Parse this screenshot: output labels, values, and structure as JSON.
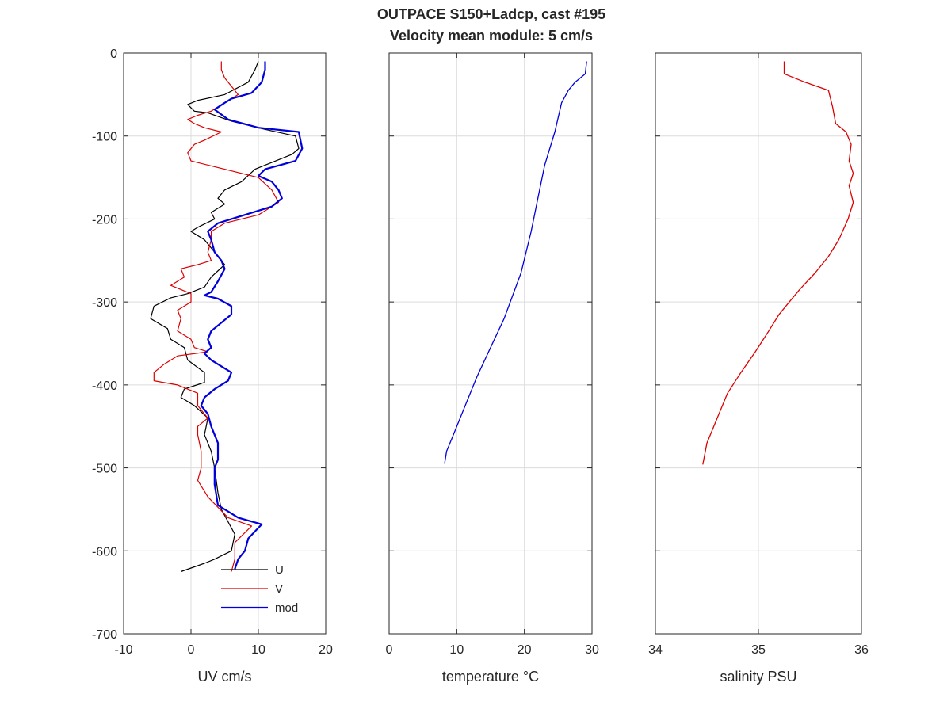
{
  "title": {
    "line1": "OUTPACE S150+Ladcp, cast #195",
    "line2": "Velocity mean module:  5 cm/s"
  },
  "chart_data": [
    {
      "type": "line",
      "xlabel": "UV cm/s",
      "ylabel": "",
      "xlim": [
        -10,
        20
      ],
      "ylim": [
        -700,
        0
      ],
      "xticks": [
        -10,
        0,
        10,
        20
      ],
      "yticks": [
        0,
        -100,
        -200,
        -300,
        -400,
        -500,
        -600,
        -700
      ],
      "grid": true,
      "legend": {
        "placement": "bottom-right",
        "entries": [
          "U",
          "V",
          "mod"
        ]
      },
      "series": [
        {
          "name": "U",
          "color": "#000000",
          "points": [
            [
              10,
              -10
            ],
            [
              9.5,
              -20
            ],
            [
              8.5,
              -35
            ],
            [
              5,
              -50
            ],
            [
              1,
              -57
            ],
            [
              -0.5,
              -62
            ],
            [
              0.5,
              -70
            ],
            [
              2.5,
              -72
            ],
            [
              6,
              -82
            ],
            [
              11,
              -92
            ],
            [
              15.5,
              -100
            ],
            [
              16,
              -115
            ],
            [
              15,
              -122
            ],
            [
              11,
              -135
            ],
            [
              9.5,
              -140
            ],
            [
              7.5,
              -155
            ],
            [
              5,
              -165
            ],
            [
              4,
              -175
            ],
            [
              5,
              -182
            ],
            [
              3,
              -192
            ],
            [
              3.5,
              -200
            ],
            [
              1,
              -210
            ],
            [
              0,
              -215
            ],
            [
              2,
              -225
            ],
            [
              3.5,
              -240
            ],
            [
              5,
              -255
            ],
            [
              3,
              -270
            ],
            [
              2,
              -282
            ],
            [
              -0.5,
              -290
            ],
            [
              -3,
              -295
            ],
            [
              -5.5,
              -305
            ],
            [
              -6,
              -320
            ],
            [
              -3.5,
              -332
            ],
            [
              -3,
              -345
            ],
            [
              -1,
              -355
            ],
            [
              -0.5,
              -370
            ],
            [
              2,
              -385
            ],
            [
              2,
              -397
            ],
            [
              -1,
              -405
            ],
            [
              -1.5,
              -415
            ],
            [
              0.5,
              -425
            ],
            [
              2.5,
              -440
            ],
            [
              2,
              -460
            ],
            [
              3,
              -480
            ],
            [
              3.5,
              -500
            ],
            [
              4,
              -530
            ],
            [
              4.5,
              -550
            ],
            [
              6.5,
              -580
            ],
            [
              6,
              -600
            ],
            [
              3.5,
              -610
            ],
            [
              2,
              -615
            ],
            [
              -1.5,
              -625
            ]
          ]
        },
        {
          "name": "V",
          "color": "#dd0000",
          "points": [
            [
              4.5,
              -10
            ],
            [
              4.5,
              -20
            ],
            [
              5,
              -30
            ],
            [
              6,
              -40
            ],
            [
              7,
              -50
            ],
            [
              5,
              -60
            ],
            [
              3,
              -70
            ],
            [
              1,
              -75
            ],
            [
              -0.5,
              -80
            ],
            [
              0.5,
              -85
            ],
            [
              2,
              -90
            ],
            [
              4.5,
              -95
            ],
            [
              2,
              -105
            ],
            [
              0.5,
              -110
            ],
            [
              -0.5,
              -120
            ],
            [
              0,
              -130
            ],
            [
              5,
              -140
            ],
            [
              10,
              -150
            ],
            [
              12,
              -165
            ],
            [
              13,
              -180
            ],
            [
              10,
              -195
            ],
            [
              5,
              -205
            ],
            [
              3,
              -215
            ],
            [
              3,
              -225
            ],
            [
              2.5,
              -240
            ],
            [
              3,
              -250
            ],
            [
              1,
              -255
            ],
            [
              -1.5,
              -260
            ],
            [
              -1,
              -270
            ],
            [
              -2,
              -275
            ],
            [
              -3,
              -280
            ],
            [
              -1.5,
              -285
            ],
            [
              0,
              -290
            ],
            [
              0,
              -300
            ],
            [
              -2,
              -310
            ],
            [
              -1.5,
              -320
            ],
            [
              -2,
              -335
            ],
            [
              0,
              -345
            ],
            [
              0.5,
              -355
            ],
            [
              2.5,
              -360
            ],
            [
              -2,
              -365
            ],
            [
              -4,
              -375
            ],
            [
              -5.5,
              -385
            ],
            [
              -5.5,
              -395
            ],
            [
              -2,
              -400
            ],
            [
              1,
              -410
            ],
            [
              1,
              -425
            ],
            [
              2.5,
              -440
            ],
            [
              1,
              -450
            ],
            [
              1,
              -460
            ],
            [
              1.5,
              -480
            ],
            [
              1.5,
              -500
            ],
            [
              1,
              -515
            ],
            [
              2.5,
              -535
            ],
            [
              5.5,
              -560
            ],
            [
              9,
              -570
            ],
            [
              6.5,
              -590
            ],
            [
              6.5,
              -610
            ],
            [
              6,
              -625
            ]
          ]
        },
        {
          "name": "mod",
          "color": "#0000dd",
          "points": [
            [
              11,
              -10
            ],
            [
              11,
              -20
            ],
            [
              10.5,
              -35
            ],
            [
              9,
              -48
            ],
            [
              6,
              -55
            ],
            [
              5,
              -60
            ],
            [
              3.5,
              -68
            ],
            [
              5.5,
              -80
            ],
            [
              10,
              -90
            ],
            [
              16,
              -95
            ],
            [
              16.5,
              -115
            ],
            [
              15.5,
              -130
            ],
            [
              11,
              -140
            ],
            [
              10,
              -148
            ],
            [
              12,
              -155
            ],
            [
              13,
              -165
            ],
            [
              13.5,
              -175
            ],
            [
              12,
              -185
            ],
            [
              8,
              -195
            ],
            [
              4,
              -205
            ],
            [
              2.5,
              -215
            ],
            [
              3,
              -225
            ],
            [
              3.5,
              -240
            ],
            [
              4.5,
              -250
            ],
            [
              5,
              -260
            ],
            [
              4,
              -275
            ],
            [
              3,
              -288
            ],
            [
              2,
              -292
            ],
            [
              4,
              -296
            ],
            [
              6,
              -305
            ],
            [
              6,
              -315
            ],
            [
              4.5,
              -325
            ],
            [
              3,
              -335
            ],
            [
              2.5,
              -345
            ],
            [
              3,
              -355
            ],
            [
              2,
              -362
            ],
            [
              3,
              -370
            ],
            [
              5,
              -380
            ],
            [
              6,
              -385
            ],
            [
              5.5,
              -395
            ],
            [
              3.5,
              -405
            ],
            [
              2,
              -415
            ],
            [
              1.5,
              -425
            ],
            [
              2.5,
              -435
            ],
            [
              3,
              -450
            ],
            [
              4,
              -470
            ],
            [
              4,
              -490
            ],
            [
              3.5,
              -500
            ],
            [
              3.5,
              -520
            ],
            [
              4,
              -545
            ],
            [
              7,
              -560
            ],
            [
              10.5,
              -568
            ],
            [
              8.5,
              -585
            ],
            [
              8,
              -600
            ],
            [
              7,
              -610
            ],
            [
              6.5,
              -622
            ]
          ]
        }
      ]
    },
    {
      "type": "line",
      "xlabel": "temperature °C",
      "ylabel": "",
      "xlim": [
        0,
        30
      ],
      "ylim": [
        -700,
        0
      ],
      "xticks": [
        0,
        10,
        20,
        30
      ],
      "grid": true,
      "series": [
        {
          "color": "#0000dd",
          "points": [
            [
              29.2,
              -10
            ],
            [
              29,
              -25
            ],
            [
              27.5,
              -35
            ],
            [
              26.5,
              -45
            ],
            [
              25.5,
              -60
            ],
            [
              24.5,
              -95
            ],
            [
              23,
              -135
            ],
            [
              22,
              -175
            ],
            [
              21,
              -215
            ],
            [
              19.5,
              -265
            ],
            [
              17,
              -320
            ],
            [
              15,
              -355
            ],
            [
              13,
              -390
            ],
            [
              11.5,
              -420
            ],
            [
              10.5,
              -440
            ],
            [
              9.5,
              -460
            ],
            [
              8.5,
              -480
            ],
            [
              8.2,
              -495
            ]
          ]
        }
      ]
    },
    {
      "type": "line",
      "xlabel": "salinity PSU",
      "ylabel": "",
      "xlim": [
        34,
        36
      ],
      "ylim": [
        -700,
        0
      ],
      "xticks": [
        34,
        35,
        36
      ],
      "grid": true,
      "series": [
        {
          "color": "#dd0000",
          "points": [
            [
              35.25,
              -10
            ],
            [
              35.25,
              -25
            ],
            [
              35.45,
              -35
            ],
            [
              35.68,
              -45
            ],
            [
              35.72,
              -65
            ],
            [
              35.75,
              -85
            ],
            [
              35.85,
              -95
            ],
            [
              35.9,
              -110
            ],
            [
              35.88,
              -130
            ],
            [
              35.92,
              -145
            ],
            [
              35.88,
              -160
            ],
            [
              35.92,
              -180
            ],
            [
              35.87,
              -200
            ],
            [
              35.78,
              -225
            ],
            [
              35.68,
              -245
            ],
            [
              35.55,
              -265
            ],
            [
              35.4,
              -285
            ],
            [
              35.3,
              -300
            ],
            [
              35.2,
              -315
            ],
            [
              35.1,
              -335
            ],
            [
              34.97,
              -360
            ],
            [
              34.83,
              -385
            ],
            [
              34.7,
              -410
            ],
            [
              34.6,
              -440
            ],
            [
              34.5,
              -470
            ],
            [
              34.46,
              -496
            ]
          ]
        }
      ]
    }
  ]
}
